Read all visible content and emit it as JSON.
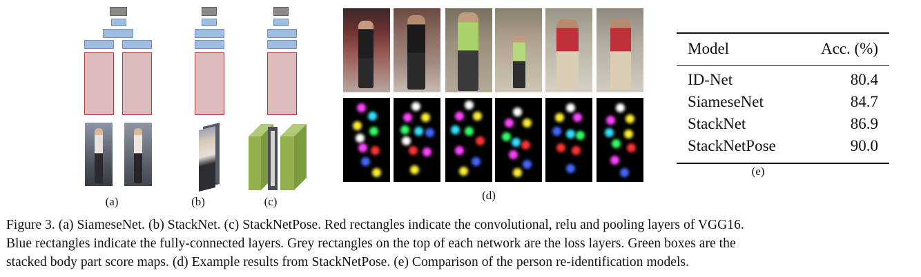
{
  "panels": {
    "a_label": "(a)",
    "b_label": "(b)",
    "c_label": "(c)",
    "d_label": "(d)",
    "e_label": "(e)"
  },
  "table": {
    "headers": [
      "Model",
      "Acc. (%)"
    ],
    "rows": [
      {
        "model": "ID-Net",
        "acc": "80.4"
      },
      {
        "model": "SiameseNet",
        "acc": "84.7"
      },
      {
        "model": "StackNet",
        "acc": "86.9"
      },
      {
        "model": "StackNetPose",
        "acc": "90.0"
      }
    ]
  },
  "caption": {
    "line1": "Figure 3. (a) SiameseNet. (b) StackNet. (c) StackNetPose. Red rectangles indicate the convolutional, relu and pooling layers of VGG16.",
    "line2": "Blue rectangles indicate the fully-connected layers. Grey rectangles on the top of each network are the loss layers. Green boxes are the",
    "line3": "stacked body part score maps. (d) Example results from StackNetPose. (e) Comparison of the person re-identification models."
  },
  "colors": {
    "loss_layer": "#8a8a8a",
    "fc_layer": "#9fbde0",
    "conv_layer": "#dcbcbc",
    "conv_border": "#b23a3a",
    "score_map_box": "#8aa84a"
  }
}
